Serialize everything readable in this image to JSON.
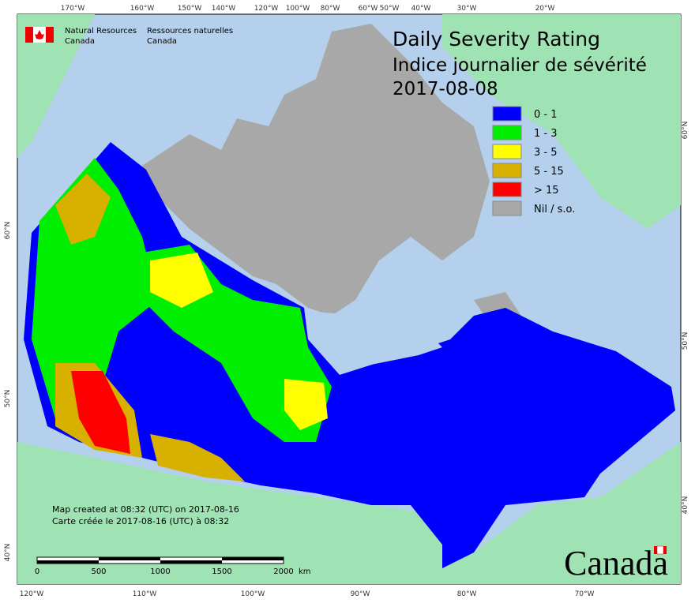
{
  "header": {
    "org_en_1": "Natural Resources",
    "org_en_2": "Canada",
    "org_fr_1": "Ressources naturelles",
    "org_fr_2": "Canada"
  },
  "title": {
    "line1": "Daily Severity Rating",
    "line2": "Indice journalier de sévérité",
    "date": "2017-08-08"
  },
  "legend": [
    {
      "label": "0 - 1",
      "color": "#0000ff"
    },
    {
      "label": "1 - 3",
      "color": "#00ee00"
    },
    {
      "label": "3 - 5",
      "color": "#ffff00"
    },
    {
      "label": "5 - 15",
      "color": "#d8b000"
    },
    {
      "label": "> 15",
      "color": "#ff0000"
    },
    {
      "label": "Nil / s.o.",
      "color": "#a8a8a8"
    }
  ],
  "graticule": {
    "top": [
      "170°W",
      "160°W",
      "150°W",
      "140°W",
      "120°W",
      "100°W",
      "80°W",
      "60°W",
      "50°W",
      "40°W",
      "30°W",
      "20°W"
    ],
    "bottom": [
      "120°W",
      "110°W",
      "100°W",
      "90°W",
      "80°W",
      "70°W"
    ],
    "left": [
      "60°N",
      "50°N",
      "40°N"
    ],
    "right": [
      "60°N",
      "50°N",
      "40°N"
    ]
  },
  "footer": {
    "created_en": "Map created at 08:32 (UTC) on 2017-08-16",
    "created_fr": "Carte créée le 2017-08-16 (UTC) à 08:32"
  },
  "scale": {
    "ticks": [
      "0",
      "500",
      "1000",
      "1500",
      "2000"
    ],
    "unit": "km"
  },
  "wordmark": "Canada"
}
